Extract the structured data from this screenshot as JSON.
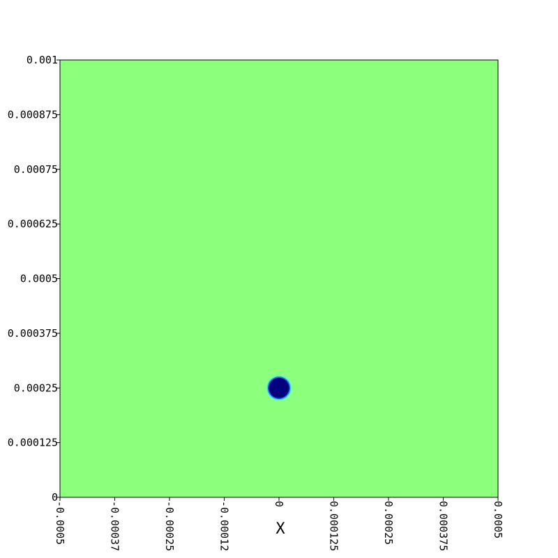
{
  "chart_data": {
    "type": "heatmap",
    "title": "",
    "xlabel": "X",
    "ylabel": "",
    "xlim": [
      -0.0005,
      0.0005
    ],
    "ylim": [
      0,
      0.001
    ],
    "x_ticks": [
      -0.0005,
      -0.000375,
      -0.00025,
      -0.000125,
      0,
      0.000125,
      0.00025,
      0.000375,
      0.0005
    ],
    "x_tick_labels": [
      "-0.0005",
      "-0.00037",
      "-0.00025",
      "-0.00012",
      "0",
      "0.000125",
      "0.00025",
      "0.000375",
      "0.0005"
    ],
    "y_ticks": [
      0,
      0.000125,
      0.00025,
      0.000375,
      0.0005,
      0.000625,
      0.00075,
      0.000875,
      0.001
    ],
    "y_tick_labels": [
      "0",
      "0.000125",
      "0.00025",
      "0.000375",
      "0.0005",
      "0.000625",
      "0.00075",
      "0.000875",
      "0.001"
    ],
    "grid": false,
    "background_color": "#8cff7c",
    "features": [
      {
        "shape": "circle",
        "center": [
          0,
          0.00025
        ],
        "radius": 2.55e-05,
        "fill_color": "#00007f",
        "edge_colors": [
          "#1a5fd0",
          "#3fdcf0"
        ]
      }
    ]
  }
}
